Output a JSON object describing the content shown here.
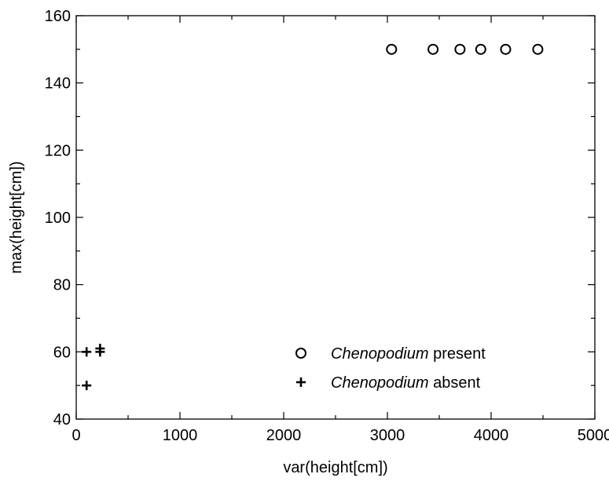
{
  "chart_data": {
    "type": "scatter",
    "xlabel": "var(height[cm])",
    "ylabel": "max(height[cm])",
    "xlim": [
      0,
      5000
    ],
    "ylim": [
      40,
      160
    ],
    "x_ticks": [
      0,
      1000,
      2000,
      3000,
      4000,
      5000
    ],
    "y_ticks": [
      40,
      60,
      80,
      100,
      120,
      140,
      160
    ],
    "grid": false,
    "legend_position": "bottom-right",
    "series": [
      {
        "name_em": "Chenopodium",
        "name_rest": "present",
        "marker": "circle",
        "points": [
          {
            "x": 3040,
            "y": 150
          },
          {
            "x": 3440,
            "y": 150
          },
          {
            "x": 3700,
            "y": 150
          },
          {
            "x": 3900,
            "y": 150
          },
          {
            "x": 4140,
            "y": 150
          },
          {
            "x": 4450,
            "y": 150
          }
        ]
      },
      {
        "name_em": "Chenopodium",
        "name_rest": "absent",
        "marker": "plus",
        "points": [
          {
            "x": 100,
            "y": 60
          },
          {
            "x": 230,
            "y": 60
          },
          {
            "x": 230,
            "y": 61
          },
          {
            "x": 100,
            "y": 50
          }
        ]
      }
    ]
  }
}
